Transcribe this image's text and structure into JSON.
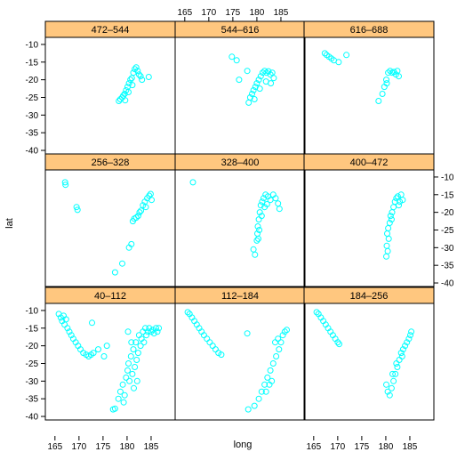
{
  "chart_data": {
    "type": "scatter",
    "xlabel": "long",
    "ylabel": "lat",
    "xlim": [
      163,
      190
    ],
    "ylim": [
      -41,
      -8
    ],
    "x_ticks": [
      165,
      170,
      175,
      180,
      185
    ],
    "y_ticks": [
      -10,
      -15,
      -20,
      -25,
      -30,
      -35,
      -40
    ],
    "point_color": "#00ffff",
    "strip_color": "#ffc77f",
    "layout": {
      "columns": 3,
      "rows": 3
    },
    "panels": [
      {
        "label": "40–112",
        "points": [
          [
            165.8,
            -11
          ],
          [
            166.2,
            -12
          ],
          [
            166.5,
            -13
          ],
          [
            166.8,
            -11.5
          ],
          [
            167,
            -14
          ],
          [
            167.3,
            -12.5
          ],
          [
            167.6,
            -15
          ],
          [
            168,
            -16
          ],
          [
            168.4,
            -17
          ],
          [
            168.8,
            -18
          ],
          [
            169.3,
            -19
          ],
          [
            169.8,
            -20
          ],
          [
            170.3,
            -21
          ],
          [
            170.9,
            -22
          ],
          [
            171.5,
            -22.5
          ],
          [
            172,
            -23
          ],
          [
            172.5,
            -22.5
          ],
          [
            173,
            -22
          ],
          [
            172.7,
            -13.5
          ],
          [
            174,
            -21
          ],
          [
            175.2,
            -23
          ],
          [
            175.8,
            -20
          ],
          [
            177.1,
            -38
          ],
          [
            177.5,
            -37.8
          ],
          [
            178.2,
            -35
          ],
          [
            178.6,
            -33
          ],
          [
            179.1,
            -31
          ],
          [
            179.5,
            -34
          ],
          [
            179.8,
            -29
          ],
          [
            180.1,
            -27
          ],
          [
            180.3,
            -25
          ],
          [
            180.5,
            -30
          ],
          [
            180.8,
            -23
          ],
          [
            181.1,
            -28
          ],
          [
            181.3,
            -21
          ],
          [
            181.6,
            -26
          ],
          [
            181.8,
            -19
          ],
          [
            182,
            -24
          ],
          [
            182.3,
            -22
          ],
          [
            182.5,
            -17
          ],
          [
            182.8,
            -20
          ],
          [
            183,
            -18
          ],
          [
            183.3,
            -16
          ],
          [
            183.5,
            -19
          ],
          [
            183.8,
            -15
          ],
          [
            184,
            -17
          ],
          [
            184.3,
            -16
          ],
          [
            184.6,
            -15
          ],
          [
            185,
            -16
          ],
          [
            185.3,
            -15.5
          ],
          [
            185.6,
            -16.5
          ],
          [
            186,
            -15
          ],
          [
            186.3,
            -16
          ],
          [
            186.6,
            -15
          ],
          [
            180.2,
            -16
          ],
          [
            180.9,
            -19
          ],
          [
            181.4,
            -32
          ],
          [
            179.3,
            -36
          ],
          [
            182.1,
            -30
          ]
        ]
      },
      {
        "label": "112–184",
        "points": [
          [
            165.6,
            -10.5
          ],
          [
            166,
            -11
          ],
          [
            166.5,
            -12
          ],
          [
            167,
            -13
          ],
          [
            167.5,
            -14
          ],
          [
            168,
            -15
          ],
          [
            168.5,
            -16
          ],
          [
            169,
            -17
          ],
          [
            169.6,
            -18
          ],
          [
            170.2,
            -19
          ],
          [
            170.8,
            -20
          ],
          [
            171.4,
            -21
          ],
          [
            172,
            -22
          ],
          [
            172.6,
            -22.5
          ],
          [
            178,
            -16.5
          ],
          [
            178.2,
            -38
          ],
          [
            179.5,
            -37
          ],
          [
            180.4,
            -35
          ],
          [
            181,
            -33
          ],
          [
            181.6,
            -31
          ],
          [
            182.2,
            -29
          ],
          [
            182.8,
            -27
          ],
          [
            183.4,
            -25
          ],
          [
            184,
            -23
          ],
          [
            184.6,
            -21
          ],
          [
            185,
            -19
          ],
          [
            185.4,
            -17
          ],
          [
            185.8,
            -16
          ],
          [
            186.2,
            -15.5
          ],
          [
            183.8,
            -19
          ],
          [
            184.4,
            -18
          ],
          [
            182.6,
            -31
          ],
          [
            181.9,
            -33
          ],
          [
            183.1,
            -30
          ]
        ]
      },
      {
        "label": "184–256",
        "points": [
          [
            165.6,
            -10.5
          ],
          [
            166,
            -11
          ],
          [
            166.5,
            -12
          ],
          [
            167,
            -13
          ],
          [
            167.5,
            -14
          ],
          [
            168,
            -15
          ],
          [
            168.5,
            -16
          ],
          [
            169,
            -17
          ],
          [
            169.5,
            -18
          ],
          [
            170,
            -19
          ],
          [
            170.3,
            -19.5
          ],
          [
            180.1,
            -31
          ],
          [
            180.4,
            -33
          ],
          [
            180.8,
            -34
          ],
          [
            181.2,
            -32
          ],
          [
            181.6,
            -30
          ],
          [
            182,
            -28
          ],
          [
            182.4,
            -26
          ],
          [
            182.8,
            -24
          ],
          [
            183.2,
            -22
          ],
          [
            183.6,
            -21
          ],
          [
            184,
            -20
          ],
          [
            184.4,
            -19
          ],
          [
            184.8,
            -18
          ],
          [
            185.1,
            -17
          ],
          [
            185.3,
            -16
          ],
          [
            181.4,
            -28
          ],
          [
            182.2,
            -25
          ],
          [
            183.4,
            -23
          ]
        ]
      },
      {
        "label": "256–328",
        "points": [
          [
            167.1,
            -11.5
          ],
          [
            167.2,
            -12.2
          ],
          [
            169.5,
            -18.5
          ],
          [
            169.7,
            -19.3
          ],
          [
            177.5,
            -37
          ],
          [
            179,
            -34.5
          ],
          [
            180.4,
            -30
          ],
          [
            180.9,
            -29
          ],
          [
            181.2,
            -22.5
          ],
          [
            181.5,
            -21.8
          ],
          [
            181.9,
            -21.5
          ],
          [
            182.3,
            -21
          ],
          [
            182.6,
            -20
          ],
          [
            182.9,
            -19.5
          ],
          [
            183.3,
            -18
          ],
          [
            183.7,
            -17
          ],
          [
            184.2,
            -16
          ],
          [
            184.6,
            -15.3
          ],
          [
            184.9,
            -14.8
          ],
          [
            185.1,
            -16.5
          ],
          [
            183.9,
            -18.5
          ]
        ]
      },
      {
        "label": "328–400",
        "points": [
          [
            166.7,
            -11.5
          ],
          [
            179.3,
            -30.5
          ],
          [
            179.6,
            -32
          ],
          [
            180,
            -28
          ],
          [
            180.1,
            -26
          ],
          [
            180.2,
            -24
          ],
          [
            180.4,
            -22
          ],
          [
            180.6,
            -20
          ],
          [
            180.8,
            -18
          ],
          [
            181.1,
            -17
          ],
          [
            181.4,
            -16
          ],
          [
            181.8,
            -15
          ],
          [
            182.3,
            -15.5
          ],
          [
            182.8,
            -16.5
          ],
          [
            183.4,
            -15
          ],
          [
            183.9,
            -16
          ],
          [
            184.4,
            -17.5
          ],
          [
            184.7,
            -19
          ],
          [
            181,
            -21
          ],
          [
            180.5,
            -25
          ],
          [
            180.3,
            -27.5
          ],
          [
            181.6,
            -18.5
          ],
          [
            182.1,
            -17.7
          ]
        ]
      },
      {
        "label": "400–472",
        "points": [
          [
            180.3,
            -26
          ],
          [
            180.5,
            -24.5
          ],
          [
            180.8,
            -23
          ],
          [
            181,
            -21
          ],
          [
            181.3,
            -20
          ],
          [
            181.6,
            -18.5
          ],
          [
            181.9,
            -17
          ],
          [
            182.2,
            -16
          ],
          [
            182.5,
            -15.5
          ],
          [
            182.9,
            -17
          ],
          [
            183.2,
            -15
          ],
          [
            183.5,
            -16.5
          ],
          [
            180.2,
            -29.5
          ],
          [
            180.4,
            -31
          ],
          [
            180.1,
            -32.5
          ],
          [
            180.6,
            -27.5
          ],
          [
            181.2,
            -22
          ],
          [
            182.7,
            -18
          ]
        ]
      },
      {
        "label": "472–544",
        "points": [
          [
            178.3,
            -26
          ],
          [
            178.6,
            -25.5
          ],
          [
            179,
            -25
          ],
          [
            179.2,
            -24.5
          ],
          [
            179.5,
            -24
          ],
          [
            179.8,
            -23
          ],
          [
            180.1,
            -22
          ],
          [
            180.4,
            -21
          ],
          [
            180.7,
            -20
          ],
          [
            181,
            -19.5
          ],
          [
            181.3,
            -18
          ],
          [
            181.6,
            -17
          ],
          [
            181.9,
            -16.5
          ],
          [
            182.2,
            -17.5
          ],
          [
            182.5,
            -18.5
          ],
          [
            182.8,
            -19
          ],
          [
            183.1,
            -20
          ],
          [
            184.5,
            -19.2
          ],
          [
            180.3,
            -23.5
          ],
          [
            181.1,
            -21.5
          ],
          [
            179.6,
            -25.8
          ]
        ]
      },
      {
        "label": "544–616",
        "points": [
          [
            174.8,
            -13.5
          ],
          [
            175.8,
            -14.5
          ],
          [
            176.3,
            -20
          ],
          [
            178,
            -17.5
          ],
          [
            178.3,
            -26.5
          ],
          [
            178.6,
            -25
          ],
          [
            179,
            -24
          ],
          [
            179.3,
            -23
          ],
          [
            179.7,
            -22
          ],
          [
            180,
            -21
          ],
          [
            180.4,
            -20
          ],
          [
            180.8,
            -19
          ],
          [
            181.2,
            -18
          ],
          [
            181.6,
            -17.5
          ],
          [
            182,
            -18
          ],
          [
            182.4,
            -17.6
          ],
          [
            182.8,
            -18.5
          ],
          [
            183.2,
            -18
          ],
          [
            183.5,
            -19.5
          ],
          [
            180.6,
            -22.5
          ],
          [
            179.5,
            -25.5
          ],
          [
            181.9,
            -20.5
          ],
          [
            182.9,
            -21
          ]
        ]
      },
      {
        "label": "616–688",
        "points": [
          [
            167.3,
            -12.5
          ],
          [
            167.7,
            -13
          ],
          [
            168.2,
            -13.5
          ],
          [
            168.7,
            -14
          ],
          [
            169.2,
            -14.5
          ],
          [
            170.2,
            -15
          ],
          [
            171.8,
            -13
          ],
          [
            178.5,
            -26
          ],
          [
            179.3,
            -24
          ],
          [
            179.7,
            -22
          ],
          [
            180.1,
            -20
          ],
          [
            180.5,
            -18
          ],
          [
            180.9,
            -17.5
          ],
          [
            181.3,
            -18
          ],
          [
            181.7,
            -17.8
          ],
          [
            182.1,
            -18.5
          ],
          [
            182.4,
            -17.5
          ],
          [
            182.7,
            -19
          ],
          [
            180.2,
            -21
          ]
        ]
      }
    ]
  }
}
